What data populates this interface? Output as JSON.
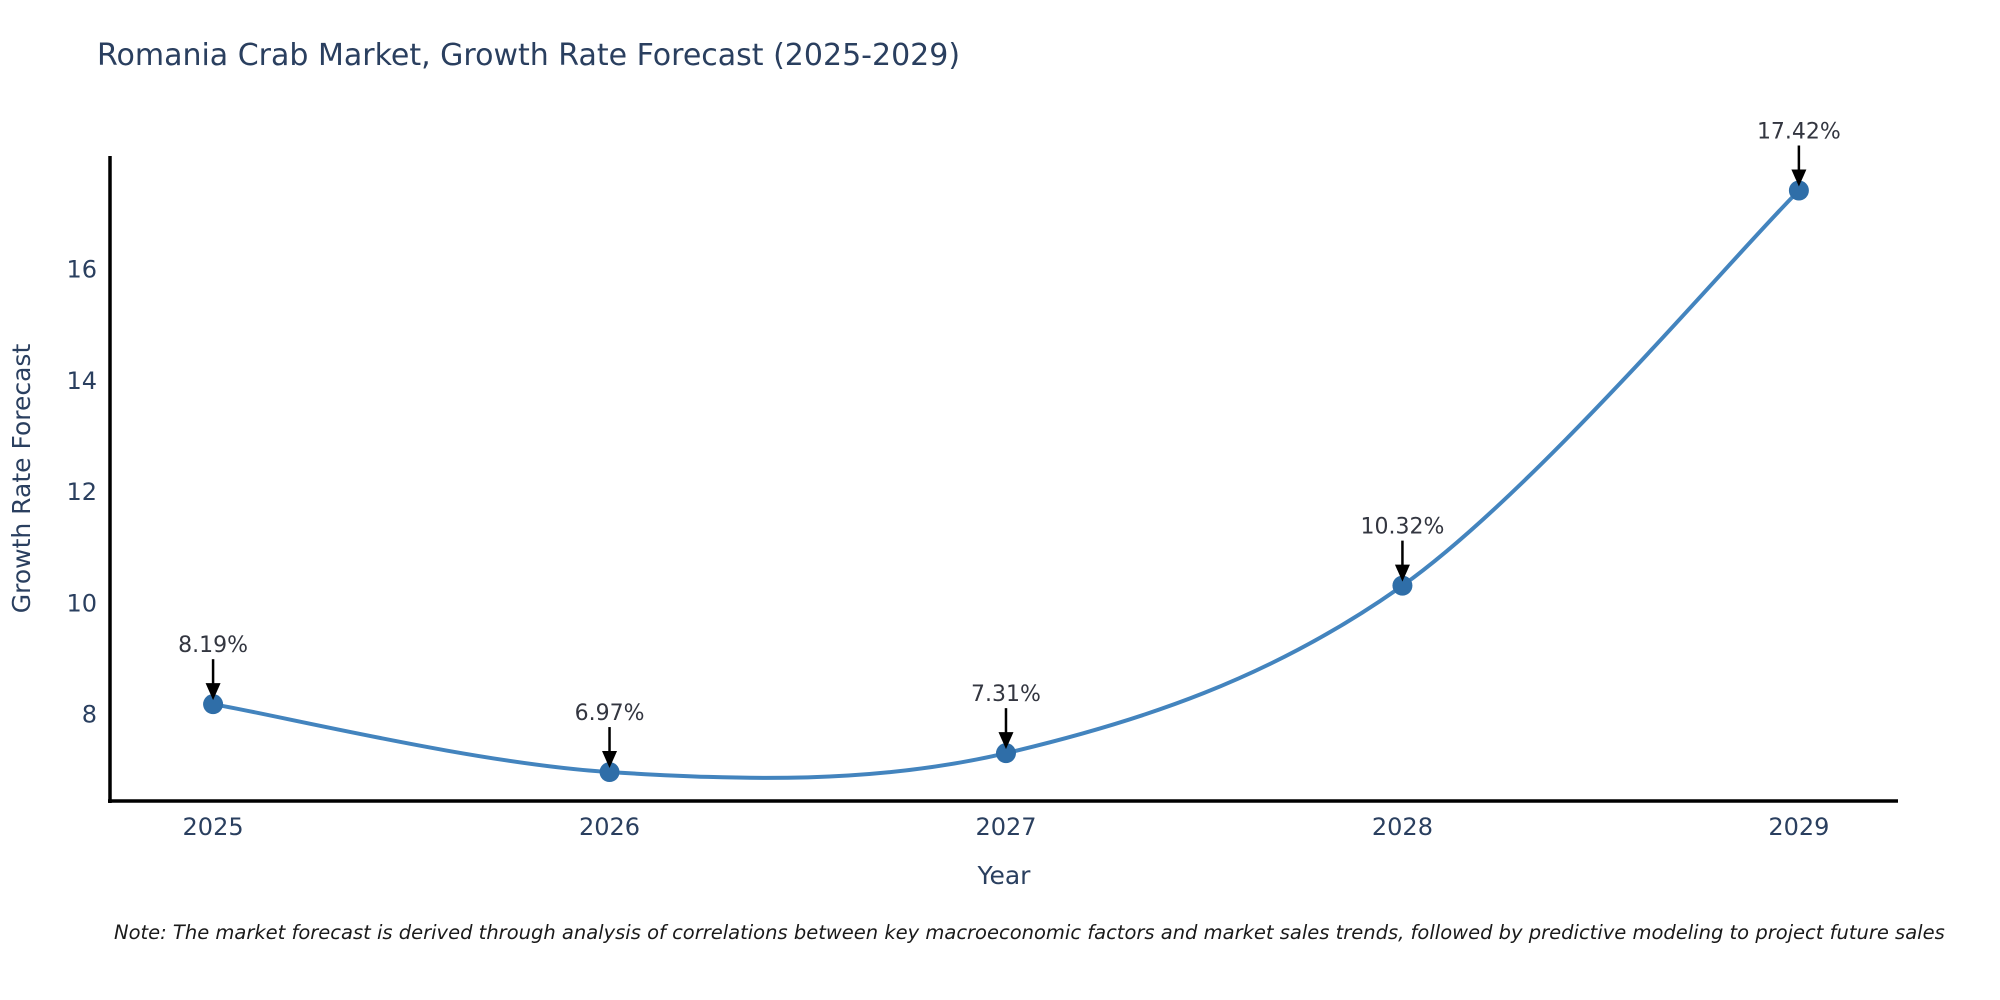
{
  "title": "Romania Crab Market, Growth Rate Forecast (2025-2029)",
  "note": "Note: The market forecast is derived through analysis of correlations between key macroeconomic factors and market sales trends, followed by predictive modeling to project future sales",
  "chart_data": {
    "type": "line",
    "title": "Romania Crab Market, Growth Rate Forecast (2025-2029)",
    "xlabel": "Year",
    "ylabel": "Growth Rate Forecast",
    "x": [
      2025,
      2026,
      2027,
      2028,
      2029
    ],
    "values": [
      8.19,
      6.97,
      7.31,
      10.32,
      17.42
    ],
    "point_labels": [
      "8.19%",
      "6.97%",
      "7.31%",
      "10.32%",
      "17.42%"
    ],
    "xticks": [
      "2025",
      "2026",
      "2027",
      "2028",
      "2029"
    ],
    "yticks": [
      8,
      10,
      12,
      14,
      16
    ],
    "xlim": [
      2024.74,
      2029.25
    ],
    "ylim": [
      6.45,
      18.04
    ],
    "line_shape": "spline",
    "grid": false,
    "legend": "none",
    "colors": {
      "line": "#4384BE",
      "marker": "#2F6EA8",
      "axis": "#000000",
      "title_text": "#2a3f5f",
      "tick_text": "#2a3f5f",
      "annotation_text": "#333640",
      "annotation_arrow": "#000000",
      "background": "#ffffff"
    }
  }
}
